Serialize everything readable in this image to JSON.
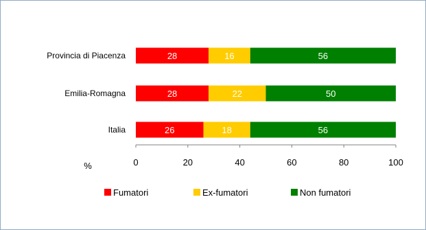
{
  "chart_data": {
    "type": "bar",
    "orientation": "horizontal",
    "stacked": true,
    "categories": [
      "Provincia di Piacenza",
      "Emilia-Romagna",
      "Italia"
    ],
    "series": [
      {
        "name": "Fumatori",
        "color": "#ff0000",
        "values": [
          28,
          28,
          26
        ]
      },
      {
        "name": "Ex-fumatori",
        "color": "#ffcc00",
        "values": [
          16,
          22,
          18
        ]
      },
      {
        "name": "Non fumatori",
        "color": "#008000",
        "values": [
          56,
          50,
          56
        ]
      }
    ],
    "xlim": [
      0,
      100
    ],
    "xticks": [
      0,
      20,
      40,
      60,
      80,
      100
    ],
    "xlabel": "%",
    "grid": false,
    "legend_position": "bottom"
  }
}
